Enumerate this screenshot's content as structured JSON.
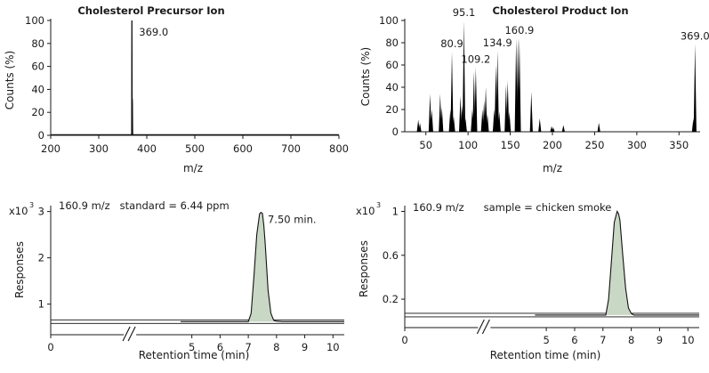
{
  "chart_data": [
    {
      "type": "line",
      "title": "Cholesterol Precursor Ion",
      "xlabel": "m/z",
      "ylabel": "Counts (%)",
      "xlim": [
        200,
        800
      ],
      "ylim": [
        0,
        100
      ],
      "xticks": [
        200,
        300,
        400,
        500,
        600,
        700,
        800
      ],
      "yticks": [
        0,
        20,
        40,
        60,
        80,
        100
      ],
      "series": [
        {
          "name": "spectrum",
          "x": [
            200,
            368.6,
            368.8,
            369.0,
            369.2,
            369.4,
            369.7,
            370.0,
            370.3,
            370.5,
            370.8,
            371.2,
            800
          ],
          "y": [
            0.5,
            0.5,
            40,
            100,
            60,
            20,
            32,
            28,
            10,
            2,
            1,
            0.5,
            0.5
          ]
        }
      ],
      "annotations": [
        {
          "text": "369.0",
          "x": 369.0,
          "y": 100
        }
      ]
    },
    {
      "type": "bar",
      "title": "Cholesterol Product Ion",
      "xlabel": "m/z",
      "ylabel": "Counts (%)",
      "xlim": [
        25,
        375
      ],
      "ylim": [
        0,
        100
      ],
      "xticks": [
        50,
        100,
        150,
        200,
        250,
        300,
        350
      ],
      "yticks": [
        0,
        20,
        40,
        60,
        80,
        100
      ],
      "peaks": [
        {
          "mz": 41,
          "value": 11
        },
        {
          "mz": 43,
          "value": 8
        },
        {
          "mz": 55,
          "value": 34
        },
        {
          "mz": 57,
          "value": 20
        },
        {
          "mz": 67,
          "value": 34
        },
        {
          "mz": 69,
          "value": 22
        },
        {
          "mz": 79,
          "value": 20
        },
        {
          "mz": 80.9,
          "value": 72
        },
        {
          "mz": 83,
          "value": 14
        },
        {
          "mz": 91,
          "value": 32
        },
        {
          "mz": 93,
          "value": 24
        },
        {
          "mz": 95.1,
          "value": 100
        },
        {
          "mz": 97,
          "value": 12
        },
        {
          "mz": 105,
          "value": 20
        },
        {
          "mz": 107,
          "value": 54
        },
        {
          "mz": 109.2,
          "value": 58
        },
        {
          "mz": 117,
          "value": 20
        },
        {
          "mz": 119,
          "value": 28
        },
        {
          "mz": 121,
          "value": 40
        },
        {
          "mz": 123,
          "value": 16
        },
        {
          "mz": 131,
          "value": 20
        },
        {
          "mz": 133,
          "value": 60
        },
        {
          "mz": 134.9,
          "value": 73
        },
        {
          "mz": 137,
          "value": 18
        },
        {
          "mz": 145,
          "value": 42
        },
        {
          "mz": 147,
          "value": 46
        },
        {
          "mz": 149,
          "value": 18
        },
        {
          "mz": 157,
          "value": 84
        },
        {
          "mz": 159,
          "value": 84
        },
        {
          "mz": 160.9,
          "value": 84
        },
        {
          "mz": 175,
          "value": 36
        },
        {
          "mz": 185,
          "value": 12
        },
        {
          "mz": 199,
          "value": 5
        },
        {
          "mz": 201,
          "value": 4
        },
        {
          "mz": 213,
          "value": 6
        },
        {
          "mz": 255,
          "value": 8
        },
        {
          "mz": 367,
          "value": 12
        },
        {
          "mz": 369.0,
          "value": 79
        }
      ],
      "annotations": [
        {
          "text": "95.1",
          "x": 95.1,
          "y": 100
        },
        {
          "text": "80.9",
          "x": 80.9,
          "y": 72
        },
        {
          "text": "109.2",
          "x": 109.2,
          "y": 58
        },
        {
          "text": "134.9",
          "x": 134.9,
          "y": 73
        },
        {
          "text": "160.9",
          "x": 160.9,
          "y": 84
        },
        {
          "text": "369.0",
          "x": 369.0,
          "y": 79
        }
      ]
    },
    {
      "type": "area",
      "scale_label": "x10",
      "scale_exponent": "3",
      "header": "160.9 m/z   standard = 6.44 ppm",
      "xlabel": "Retention time (min)",
      "ylabel": "Responses",
      "xlim": [
        0,
        10.4
      ],
      "ylim": [
        0.55,
        3.05
      ],
      "axis_break": [
        0.45,
        4.6
      ],
      "xticks": [
        0,
        5,
        6,
        7,
        8,
        9,
        10
      ],
      "yticks": [
        1,
        2,
        3
      ],
      "baseline": 0.62,
      "series": [
        {
          "name": "trace",
          "x": [
            4.6,
            7.0,
            7.1,
            7.2,
            7.3,
            7.4,
            7.45,
            7.5,
            7.55,
            7.6,
            7.7,
            7.8,
            7.9,
            8.0,
            8.2,
            10.4
          ],
          "y": [
            0.62,
            0.62,
            0.8,
            1.6,
            2.5,
            2.95,
            2.98,
            2.96,
            2.7,
            2.3,
            1.3,
            0.8,
            0.65,
            0.63,
            0.62,
            0.62
          ]
        }
      ],
      "annotations": [
        {
          "text": "7.50 min.",
          "x": 7.5,
          "y": 2.98
        }
      ]
    },
    {
      "type": "area",
      "scale_label": "x10",
      "scale_exponent": "3",
      "header": "160.9 m/z      sample = chicken smoke",
      "xlabel": "Retention time (min)",
      "ylabel": "Responses",
      "xlim": [
        0,
        10.4
      ],
      "ylim": [
        0.03,
        1.02
      ],
      "axis_break": [
        0.45,
        4.6
      ],
      "xticks": [
        0,
        5,
        6,
        7,
        8,
        9,
        10
      ],
      "yticks": [
        0.2,
        0.6,
        1
      ],
      "baseline": 0.055,
      "series": [
        {
          "name": "trace",
          "x": [
            4.6,
            7.1,
            7.2,
            7.3,
            7.4,
            7.5,
            7.55,
            7.6,
            7.7,
            7.8,
            7.9,
            8.0,
            8.1,
            10.4
          ],
          "y": [
            0.055,
            0.055,
            0.2,
            0.55,
            0.9,
            1.0,
            0.98,
            0.92,
            0.6,
            0.3,
            0.12,
            0.07,
            0.055,
            0.055
          ]
        }
      ],
      "annotations": []
    }
  ]
}
